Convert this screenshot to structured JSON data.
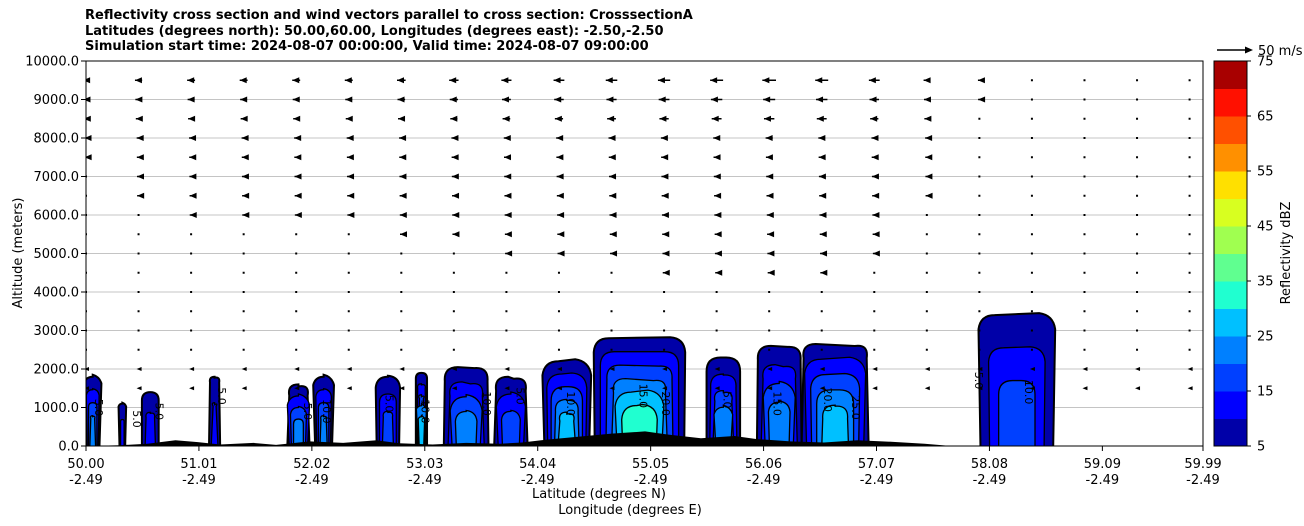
{
  "chart_data": {
    "type": "contour",
    "title_lines": [
      "Reflectivity cross section and wind vectors parallel to cross section: CrosssectionA",
      "Latitudes (degrees north): 50.00,60.00, Longitudes (degrees east): -2.50,-2.50",
      "Simulation start time: 2024-08-07 00:00:00, Valid time: 2024-08-07 09:00:00"
    ],
    "ylabel": "Altitude (meters)",
    "xlabel_lat": "Latitude (degrees N)",
    "xlabel_lon": "Longitude (degrees E)",
    "ylim": [
      0,
      10000
    ],
    "xlim": [
      50.0,
      59.99
    ],
    "y_ticks": [
      {
        "value": 0,
        "label": "0.0"
      },
      {
        "value": 1000,
        "label": "1000.0"
      },
      {
        "value": 2000,
        "label": "2000.0"
      },
      {
        "value": 3000,
        "label": "3000.0"
      },
      {
        "value": 4000,
        "label": "4000.0"
      },
      {
        "value": 5000,
        "label": "5000.0"
      },
      {
        "value": 6000,
        "label": "6000.0"
      },
      {
        "value": 7000,
        "label": "7000.0"
      },
      {
        "value": 8000,
        "label": "8000.0"
      },
      {
        "value": 9000,
        "label": "9000.0"
      },
      {
        "value": 10000,
        "label": "10000.0"
      }
    ],
    "x_ticks": [
      {
        "value": 50.0,
        "lat": "50.00",
        "lon": "-2.49"
      },
      {
        "value": 51.01,
        "lat": "51.01",
        "lon": "-2.49"
      },
      {
        "value": 52.02,
        "lat": "52.02",
        "lon": "-2.49"
      },
      {
        "value": 53.03,
        "lat": "53.03",
        "lon": "-2.49"
      },
      {
        "value": 54.04,
        "lat": "54.04",
        "lon": "-2.49"
      },
      {
        "value": 55.05,
        "lat": "55.05",
        "lon": "-2.49"
      },
      {
        "value": 56.06,
        "lat": "56.06",
        "lon": "-2.49"
      },
      {
        "value": 57.07,
        "lat": "57.07",
        "lon": "-2.49"
      },
      {
        "value": 58.08,
        "lat": "58.08",
        "lon": "-2.49"
      },
      {
        "value": 59.09,
        "lat": "59.09",
        "lon": "-2.49"
      },
      {
        "value": 59.99,
        "lat": "59.99",
        "lon": "-2.49"
      }
    ],
    "grid": "horizontal",
    "colorbar": {
      "label": "Reflectivity dBZ",
      "levels": [
        5,
        10,
        15,
        20,
        25,
        30,
        35,
        40,
        45,
        50,
        55,
        60,
        65,
        70,
        75
      ],
      "tick_labels": [
        "5",
        "15",
        "25",
        "35",
        "45",
        "55",
        "65",
        "75"
      ],
      "colors": [
        "#0000a8",
        "#0000ff",
        "#0040ff",
        "#0080ff",
        "#00c0ff",
        "#20ffd0",
        "#60ff90",
        "#a0ff50",
        "#d8ff20",
        "#ffe000",
        "#ff9000",
        "#ff5000",
        "#ff1000",
        "#a80000"
      ]
    },
    "vector_key": {
      "label": "50 m/s",
      "speed": 50
    },
    "wind_vector_rows_altitude": [
      9500,
      9000,
      8500,
      8000,
      7500,
      7000,
      6500,
      6000,
      5500,
      5000,
      4500,
      4000,
      3500,
      3000,
      2500
    ],
    "wind_vector_columns_latitude": [
      50.0,
      50.47,
      50.94,
      51.41,
      51.88,
      52.35,
      52.82,
      53.29,
      53.76,
      54.23,
      54.7,
      55.17,
      55.64,
      56.11,
      56.58,
      57.05,
      57.52,
      57.99,
      58.46,
      58.93,
      59.4,
      59.87
    ],
    "wind_speed_u_ms_row_9500": [
      -8,
      -10,
      -11,
      -11,
      -11,
      -11,
      -12,
      -13,
      -14,
      -15,
      -16,
      -17,
      -18,
      -19,
      -18,
      -15,
      -9,
      -4,
      -1,
      -1,
      -1,
      -1
    ],
    "reflectivity_cells": [
      {
        "lat_range": [
          50.0,
          50.12
        ],
        "top_m": 1800,
        "max_dbz": 22
      },
      {
        "lat_range": [
          50.3,
          50.35
        ],
        "top_m": 1100,
        "max_dbz": 10
      },
      {
        "lat_range": [
          50.5,
          50.65
        ],
        "top_m": 1400,
        "max_dbz": 12
      },
      {
        "lat_range": [
          51.1,
          51.2
        ],
        "top_m": 1800,
        "max_dbz": 10
      },
      {
        "lat_range": [
          51.8,
          52.0
        ],
        "top_m": 1600,
        "max_dbz": 20
      },
      {
        "lat_range": [
          52.05,
          52.2
        ],
        "top_m": 1800,
        "max_dbz": 20
      },
      {
        "lat_range": [
          52.6,
          52.8
        ],
        "top_m": 1800,
        "max_dbz": 18
      },
      {
        "lat_range": [
          52.95,
          53.05
        ],
        "top_m": 1900,
        "max_dbz": 25
      },
      {
        "lat_range": [
          53.2,
          53.6
        ],
        "top_m": 2050,
        "max_dbz": 20
      },
      {
        "lat_range": [
          53.65,
          53.95
        ],
        "top_m": 1800,
        "max_dbz": 18
      },
      {
        "lat_range": [
          54.1,
          54.5
        ],
        "top_m": 2200,
        "max_dbz": 25
      },
      {
        "lat_range": [
          54.55,
          55.35
        ],
        "top_m": 2800,
        "max_dbz": 30
      },
      {
        "lat_range": [
          55.55,
          55.85
        ],
        "top_m": 2300,
        "max_dbz": 20
      },
      {
        "lat_range": [
          56.0,
          56.4
        ],
        "top_m": 2600,
        "max_dbz": 20
      },
      {
        "lat_range": [
          56.4,
          57.0
        ],
        "top_m": 2650,
        "max_dbz": 25
      },
      {
        "lat_range": [
          58.0,
          58.65
        ],
        "top_m": 3400,
        "max_dbz": 15
      }
    ],
    "contour_labels": [
      "5.0",
      "10.0",
      "15.0",
      "20.0",
      "25.0"
    ]
  }
}
